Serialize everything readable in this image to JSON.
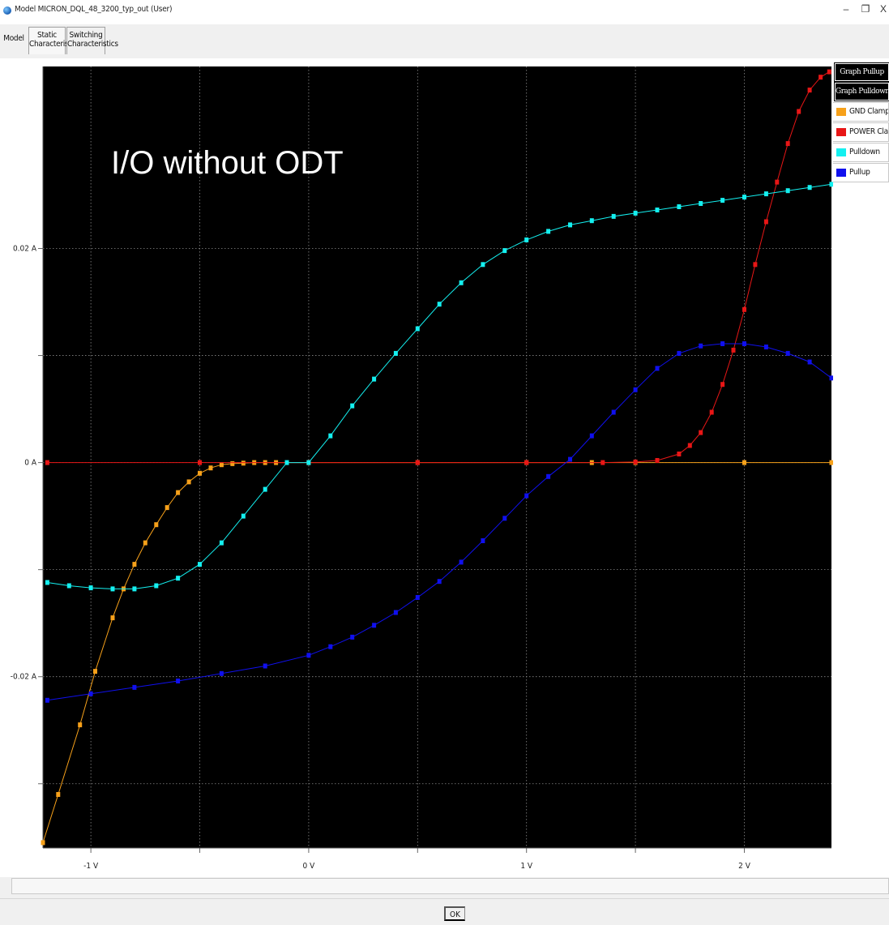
{
  "window": {
    "title": "Model MICRON_DQL_48_3200_typ_out (User)",
    "controls": {
      "minimize": "–",
      "maximize": "❐",
      "close": "X"
    }
  },
  "tabs": [
    {
      "label": "Model"
    },
    {
      "label_line1": "Static",
      "label_line2": "Characteristics"
    },
    {
      "label_line1": "Switching",
      "label_line2": "Characteristics"
    }
  ],
  "legend": {
    "buttons": [
      "Graph Pullup",
      "Graph Pulldown"
    ],
    "items": [
      {
        "label": "GND Clamp",
        "color": "#f7a11a"
      },
      {
        "label": "POWER Clamp",
        "color": "#e81616"
      },
      {
        "label": "Pulldown",
        "color": "#14f0f0"
      },
      {
        "label": "Pullup",
        "color": "#1010ee"
      }
    ]
  },
  "footer": {
    "ok_label": "OK"
  },
  "chart_data": {
    "type": "line",
    "annotation": "I/O without ODT",
    "xlabel": "",
    "ylabel": "",
    "xlim": [
      -1.22,
      2.4
    ],
    "ylim": [
      -0.036,
      0.037
    ],
    "x_ticks": [
      {
        "value": -1,
        "label": "-1 V"
      },
      {
        "value": 0,
        "label": "0 V"
      },
      {
        "value": 1,
        "label": "1 V"
      },
      {
        "value": 2,
        "label": "2 V"
      }
    ],
    "y_ticks": [
      {
        "value": 0.02,
        "label": "0.02 A"
      },
      {
        "value": 0,
        "label": "0 A"
      },
      {
        "value": -0.02,
        "label": "-0.02 A"
      }
    ],
    "x_minor_grid": [
      -0.5,
      0.5,
      1.5
    ],
    "y_minor_grid": [
      0.01,
      -0.01,
      -0.03
    ],
    "grid": true,
    "background": "#000000",
    "series": [
      {
        "name": "GND Clamp",
        "color": "#f7a11a",
        "x": [
          -1.22,
          -1.15,
          -1.05,
          -0.98,
          -0.9,
          -0.85,
          -0.8,
          -0.75,
          -0.7,
          -0.65,
          -0.6,
          -0.55,
          -0.5,
          -0.45,
          -0.4,
          -0.35,
          -0.3,
          -0.25,
          -0.2,
          -0.15,
          0,
          0.5,
          1,
          1.3,
          1.5,
          2,
          2.4
        ],
        "y": [
          -0.0355,
          -0.031,
          -0.0245,
          -0.0195,
          -0.0145,
          -0.0118,
          -0.0095,
          -0.0075,
          -0.0058,
          -0.0042,
          -0.0028,
          -0.0018,
          -0.001,
          -0.0005,
          -0.0002,
          -0.0001,
          -5e-05,
          0,
          0,
          0,
          0,
          0,
          0,
          0,
          0,
          0,
          0
        ]
      },
      {
        "name": "POWER Clamp",
        "color": "#e81616",
        "x": [
          -1.2,
          -0.5,
          0,
          0.5,
          1,
          1.35,
          1.5,
          1.6,
          1.7,
          1.75,
          1.8,
          1.85,
          1.9,
          1.95,
          2.0,
          2.05,
          2.1,
          2.15,
          2.2,
          2.25,
          2.3,
          2.35,
          2.39
        ],
        "y": [
          0,
          0,
          0,
          0,
          0,
          0,
          5e-05,
          0.0002,
          0.0008,
          0.0016,
          0.0028,
          0.0047,
          0.0073,
          0.0105,
          0.0143,
          0.0185,
          0.0225,
          0.0262,
          0.0298,
          0.0328,
          0.0348,
          0.036,
          0.0365
        ]
      },
      {
        "name": "Pulldown",
        "color": "#14f0f0",
        "x": [
          -1.2,
          -1.1,
          -1.0,
          -0.9,
          -0.8,
          -0.7,
          -0.6,
          -0.5,
          -0.4,
          -0.3,
          -0.2,
          -0.1,
          0,
          0.1,
          0.2,
          0.3,
          0.4,
          0.5,
          0.6,
          0.7,
          0.8,
          0.9,
          1.0,
          1.1,
          1.2,
          1.3,
          1.4,
          1.5,
          1.6,
          1.7,
          1.8,
          1.9,
          2.0,
          2.1,
          2.2,
          2.3,
          2.4
        ],
        "y": [
          -0.0112,
          -0.0115,
          -0.0117,
          -0.0118,
          -0.0118,
          -0.0115,
          -0.0108,
          -0.0095,
          -0.0075,
          -0.005,
          -0.0025,
          0,
          0,
          0.0025,
          0.0053,
          0.0078,
          0.0102,
          0.0125,
          0.0148,
          0.0168,
          0.0185,
          0.0198,
          0.0208,
          0.0216,
          0.0222,
          0.0226,
          0.023,
          0.0233,
          0.0236,
          0.0239,
          0.0242,
          0.0245,
          0.0248,
          0.0251,
          0.0254,
          0.0257,
          0.026
        ]
      },
      {
        "name": "Pullup",
        "color": "#1010ee",
        "x": [
          -1.2,
          -1.0,
          -0.8,
          -0.6,
          -0.4,
          -0.2,
          0,
          0.1,
          0.2,
          0.3,
          0.4,
          0.5,
          0.6,
          0.7,
          0.8,
          0.9,
          1.0,
          1.1,
          1.2,
          1.3,
          1.4,
          1.5,
          1.6,
          1.7,
          1.8,
          1.9,
          2.0,
          2.1,
          2.2,
          2.3,
          2.4
        ],
        "y": [
          -0.0222,
          -0.0216,
          -0.021,
          -0.0204,
          -0.0197,
          -0.019,
          -0.018,
          -0.0172,
          -0.0163,
          -0.0152,
          -0.014,
          -0.0126,
          -0.0111,
          -0.0093,
          -0.0073,
          -0.0052,
          -0.0031,
          -0.0013,
          0.0003,
          0.0025,
          0.0047,
          0.0068,
          0.0088,
          0.0102,
          0.0109,
          0.0111,
          0.0111,
          0.0108,
          0.0102,
          0.0094,
          0.0079
        ]
      }
    ]
  }
}
